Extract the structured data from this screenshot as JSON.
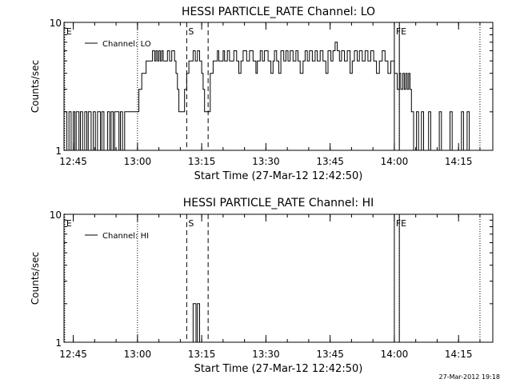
{
  "footer_timestamp": "27-Mar-2012 19:18",
  "chart_data": [
    {
      "type": "line",
      "title": "HESSI PARTICLE_RATE Channel: LO",
      "ylabel": "Counts/sec",
      "xlabel": "Start Time (27-Mar-12 12:42:50)",
      "x_unit": "time (HH:MM, 27-Mar-2012)",
      "xlim": [
        "12:42:50",
        "14:23:00"
      ],
      "ylim": [
        1,
        10
      ],
      "y_scale": "log",
      "y_ticks": [
        "1",
        "10"
      ],
      "x_ticks": [
        "12:45",
        "13:00",
        "13:15",
        "13:30",
        "13:45",
        "14:00",
        "14:15"
      ],
      "legend": {
        "placement": "top-left",
        "entries": [
          "Channel: LO"
        ]
      },
      "series": [
        {
          "name": "Channel: LO",
          "step": true,
          "points": [
            [
              "12:42:50",
              2
            ],
            [
              "12:43:30",
              1
            ],
            [
              "12:44:00",
              2
            ],
            [
              "12:44:30",
              1
            ],
            [
              "12:45:00",
              2
            ],
            [
              "12:45:20",
              1
            ],
            [
              "12:45:40",
              2
            ],
            [
              "12:46:20",
              1
            ],
            [
              "12:46:40",
              2
            ],
            [
              "12:47:10",
              1
            ],
            [
              "12:47:40",
              2
            ],
            [
              "12:48:10",
              1
            ],
            [
              "12:48:30",
              2
            ],
            [
              "12:49:10",
              1
            ],
            [
              "12:49:40",
              2
            ],
            [
              "12:50:10",
              1
            ],
            [
              "12:50:40",
              2
            ],
            [
              "12:51:20",
              1
            ],
            [
              "12:51:40",
              2
            ],
            [
              "12:52:10",
              1
            ],
            [
              "12:53:00",
              2
            ],
            [
              "12:53:30",
              1
            ],
            [
              "12:53:50",
              2
            ],
            [
              "12:54:20",
              1
            ],
            [
              "12:54:40",
              2
            ],
            [
              "12:55:40",
              1
            ],
            [
              "12:56:00",
              2
            ],
            [
              "12:56:30",
              1
            ],
            [
              "12:57:00",
              2
            ],
            [
              "13:00:20",
              3
            ],
            [
              "13:01:00",
              4
            ],
            [
              "13:02:00",
              5
            ],
            [
              "13:03:00",
              5
            ],
            [
              "13:03:30",
              6
            ],
            [
              "13:04:00",
              5
            ],
            [
              "13:04:20",
              6
            ],
            [
              "13:04:40",
              5
            ],
            [
              "13:05:00",
              6
            ],
            [
              "13:05:20",
              5
            ],
            [
              "13:05:40",
              6
            ],
            [
              "13:06:00",
              5
            ],
            [
              "13:07:00",
              6
            ],
            [
              "13:07:30",
              5
            ],
            [
              "13:08:00",
              6
            ],
            [
              "13:08:40",
              5
            ],
            [
              "13:09:00",
              4
            ],
            [
              "13:09:20",
              3
            ],
            [
              "13:09:40",
              2
            ],
            [
              "13:11:00",
              3
            ],
            [
              "13:11:30",
              4
            ],
            [
              "13:12:00",
              5
            ],
            [
              "13:13:00",
              6
            ],
            [
              "13:13:30",
              5
            ],
            [
              "13:14:00",
              6
            ],
            [
              "13:14:30",
              5
            ],
            [
              "13:15:00",
              4
            ],
            [
              "13:15:20",
              3
            ],
            [
              "13:15:40",
              2
            ],
            [
              "13:17:00",
              4
            ],
            [
              "13:17:40",
              5
            ],
            [
              "13:18:40",
              6
            ],
            [
              "13:19:00",
              5
            ],
            [
              "13:20:00",
              6
            ],
            [
              "13:20:20",
              5
            ],
            [
              "13:21:00",
              6
            ],
            [
              "13:21:30",
              5
            ],
            [
              "13:22:30",
              6
            ],
            [
              "13:23:10",
              5
            ],
            [
              "13:23:40",
              4
            ],
            [
              "13:24:10",
              5
            ],
            [
              "13:24:40",
              6
            ],
            [
              "13:25:30",
              5
            ],
            [
              "13:26:10",
              6
            ],
            [
              "13:27:00",
              5
            ],
            [
              "13:27:40",
              4
            ],
            [
              "13:28:00",
              5
            ],
            [
              "13:28:40",
              6
            ],
            [
              "13:29:10",
              5
            ],
            [
              "13:29:40",
              6
            ],
            [
              "13:30:30",
              5
            ],
            [
              "13:31:10",
              4
            ],
            [
              "13:31:40",
              5
            ],
            [
              "13:32:00",
              6
            ],
            [
              "13:32:30",
              5
            ],
            [
              "13:33:00",
              4
            ],
            [
              "13:33:30",
              6
            ],
            [
              "13:34:10",
              5
            ],
            [
              "13:34:40",
              6
            ],
            [
              "13:35:10",
              5
            ],
            [
              "13:35:40",
              6
            ],
            [
              "13:36:20",
              5
            ],
            [
              "13:37:00",
              6
            ],
            [
              "13:37:30",
              5
            ],
            [
              "13:38:00",
              4
            ],
            [
              "13:38:40",
              5
            ],
            [
              "13:39:10",
              6
            ],
            [
              "13:39:40",
              5
            ],
            [
              "13:40:10",
              6
            ],
            [
              "13:40:50",
              5
            ],
            [
              "13:41:30",
              6
            ],
            [
              "13:42:00",
              5
            ],
            [
              "13:42:40",
              6
            ],
            [
              "13:43:20",
              5
            ],
            [
              "13:44:00",
              4
            ],
            [
              "13:44:30",
              6
            ],
            [
              "13:45:10",
              5
            ],
            [
              "13:45:40",
              6
            ],
            [
              "13:46:10",
              7
            ],
            [
              "13:46:40",
              6
            ],
            [
              "13:47:10",
              5
            ],
            [
              "13:47:40",
              6
            ],
            [
              "13:48:20",
              5
            ],
            [
              "13:49:00",
              6
            ],
            [
              "13:49:40",
              4
            ],
            [
              "13:50:10",
              5
            ],
            [
              "13:50:40",
              6
            ],
            [
              "13:51:20",
              5
            ],
            [
              "13:51:50",
              6
            ],
            [
              "13:52:30",
              5
            ],
            [
              "13:53:10",
              6
            ],
            [
              "13:53:50",
              5
            ],
            [
              "13:54:30",
              6
            ],
            [
              "13:55:10",
              5
            ],
            [
              "13:55:50",
              4
            ],
            [
              "13:56:30",
              5
            ],
            [
              "13:57:10",
              6
            ],
            [
              "13:57:50",
              5
            ],
            [
              "13:58:30",
              4
            ],
            [
              "13:59:10",
              5
            ],
            [
              "14:00:00",
              4
            ],
            [
              "14:00:40",
              3
            ],
            [
              "14:01:10",
              4
            ],
            [
              "14:01:30",
              3
            ],
            [
              "14:02:00",
              4
            ],
            [
              "14:02:20",
              3
            ],
            [
              "14:02:40",
              4
            ],
            [
              "14:03:00",
              3
            ],
            [
              "14:03:20",
              4
            ],
            [
              "14:03:40",
              3
            ],
            [
              "14:04:00",
              2
            ],
            [
              "14:04:30",
              1
            ],
            [
              "14:05:10",
              2
            ],
            [
              "14:05:40",
              1
            ],
            [
              "14:06:20",
              2
            ],
            [
              "14:06:50",
              1
            ],
            [
              "14:08:00",
              2
            ],
            [
              "14:08:30",
              1
            ],
            [
              "14:10:30",
              2
            ],
            [
              "14:11:00",
              1
            ],
            [
              "14:13:00",
              2
            ],
            [
              "14:13:30",
              1
            ],
            [
              "14:15:40",
              2
            ],
            [
              "14:16:10",
              1
            ],
            [
              "14:17:00",
              2
            ],
            [
              "14:17:30",
              1
            ]
          ]
        }
      ],
      "vertical_lines": [
        {
          "time": "12:43:00",
          "style": "dotted",
          "label": "E"
        },
        {
          "time": "13:00:00",
          "style": "dotted",
          "label": ""
        },
        {
          "time": "13:11:30",
          "style": "dashed",
          "label": "S"
        },
        {
          "time": "13:16:30",
          "style": "dashed",
          "label": ""
        },
        {
          "time": "14:00:00",
          "style": "solid",
          "label": "F"
        },
        {
          "time": "14:01:10",
          "style": "solid",
          "label": "E"
        },
        {
          "time": "14:01:10",
          "style": "dotted",
          "label": ""
        },
        {
          "time": "14:20:00",
          "style": "dotted",
          "label": ""
        }
      ]
    },
    {
      "type": "line",
      "title": "HESSI PARTICLE_RATE Channel: HI",
      "ylabel": "Counts/sec",
      "xlabel": "Start Time (27-Mar-12 12:42:50)",
      "x_unit": "time (HH:MM, 27-Mar-2012)",
      "xlim": [
        "12:42:50",
        "14:23:00"
      ],
      "ylim": [
        1,
        10
      ],
      "y_scale": "log",
      "y_ticks": [
        "1",
        "10"
      ],
      "x_ticks": [
        "12:45",
        "13:00",
        "13:15",
        "13:30",
        "13:45",
        "14:00",
        "14:15"
      ],
      "legend": {
        "placement": "top-left",
        "entries": [
          "Channel: HI"
        ]
      },
      "series": [
        {
          "name": "Channel: HI",
          "step": true,
          "points": [
            [
              "13:12:30",
              1
            ],
            [
              "13:13:00",
              2
            ],
            [
              "13:13:40",
              1
            ],
            [
              "13:14:00",
              2
            ],
            [
              "13:14:30",
              1
            ]
          ]
        }
      ],
      "vertical_lines": [
        {
          "time": "12:43:00",
          "style": "dotted",
          "label": "E"
        },
        {
          "time": "13:00:00",
          "style": "dotted",
          "label": ""
        },
        {
          "time": "13:11:30",
          "style": "dashed",
          "label": "S"
        },
        {
          "time": "13:16:30",
          "style": "dashed",
          "label": ""
        },
        {
          "time": "14:00:00",
          "style": "solid",
          "label": "F"
        },
        {
          "time": "14:01:10",
          "style": "solid",
          "label": "E"
        },
        {
          "time": "14:01:10",
          "style": "dotted",
          "label": ""
        },
        {
          "time": "14:20:00",
          "style": "dotted",
          "label": ""
        }
      ]
    }
  ]
}
